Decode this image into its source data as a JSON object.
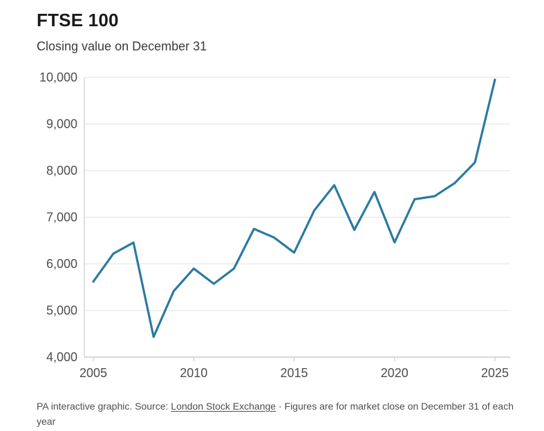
{
  "header": {
    "title": "FTSE 100",
    "subtitle": "Closing value on December 31"
  },
  "footer": {
    "prefix": "PA interactive graphic. Source: ",
    "source_link": "London Stock Exchange",
    "suffix": " · Figures are for market close on December 31 of each year"
  },
  "colors": {
    "line": "#2b7aa0",
    "grid": "#e7e7e7",
    "axis": "#cccccc",
    "tick_label": "#4d4d4d"
  },
  "chart_data": {
    "type": "line",
    "title": "FTSE 100",
    "subtitle": "Closing value on December 31",
    "xlabel": "",
    "ylabel": "",
    "x": [
      2005,
      2006,
      2007,
      2008,
      2009,
      2010,
      2011,
      2012,
      2013,
      2014,
      2015,
      2016,
      2017,
      2018,
      2019,
      2020,
      2021,
      2022,
      2023,
      2024,
      2025
    ],
    "values": [
      5619,
      6221,
      6457,
      4434,
      5413,
      5900,
      5572,
      5898,
      6749,
      6566,
      6242,
      7143,
      7688,
      6728,
      7542,
      6461,
      7385,
      7452,
      7733,
      8173,
      9950
    ],
    "xlim": [
      2005,
      2025
    ],
    "ylim": [
      4000,
      10000
    ],
    "y_ticks": [
      4000,
      5000,
      6000,
      7000,
      8000,
      9000,
      10000
    ],
    "y_tick_labels": [
      "4,000",
      "5,000",
      "6,000",
      "7,000",
      "8,000",
      "9,000",
      "10,000"
    ],
    "x_ticks": [
      2005,
      2010,
      2015,
      2020,
      2025
    ],
    "x_tick_labels": [
      "2005",
      "2010",
      "2015",
      "2020",
      "2025"
    ],
    "grid": true,
    "legend": false
  }
}
